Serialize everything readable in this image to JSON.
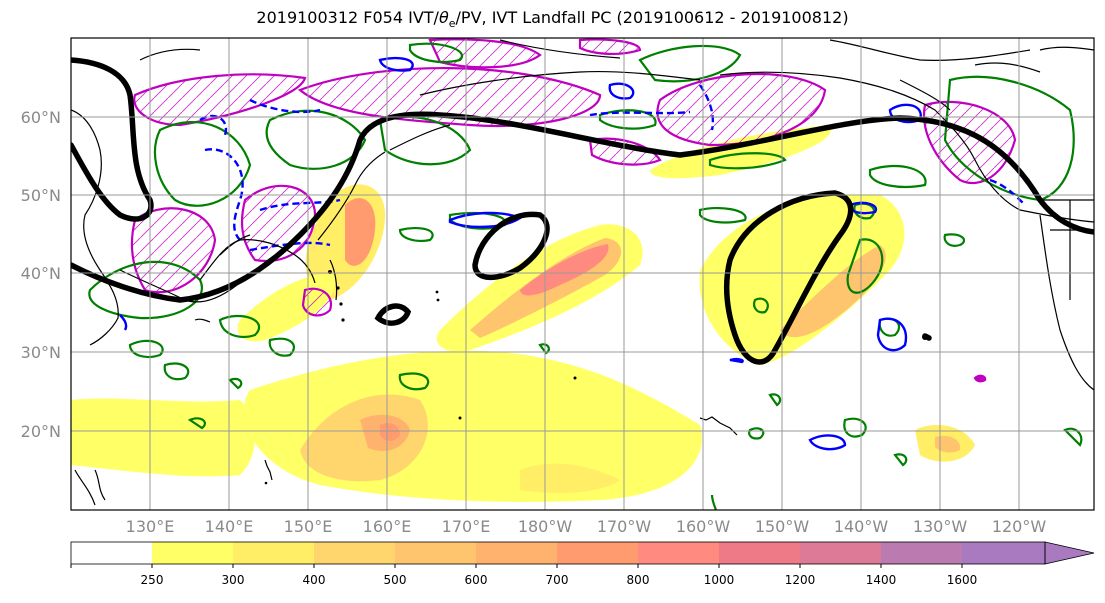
{
  "title": {
    "prefix": "2019100312 F054 IVT/",
    "theta": "θ",
    "theta_sub": "e",
    "suffix": "/PV, IVT Landfall PC (2019100612 - 2019100812)"
  },
  "map": {
    "lat_labels": [
      "60°N",
      "50°N",
      "40°N",
      "30°N",
      "20°N"
    ],
    "lon_labels": [
      "130°E",
      "140°E",
      "150°E",
      "160°E",
      "170°E",
      "180°W",
      "170°W",
      "160°W",
      "150°W",
      "140°W",
      "130°W",
      "120°W"
    ],
    "colors": {
      "land_outline": "#000000",
      "pv_contour": "#000000",
      "theta_contour": "#0000ff",
      "green_contour": "#008000",
      "hatch": "#c000c0"
    }
  },
  "colorbar": {
    "ticks": [
      "250",
      "300",
      "400",
      "500",
      "600",
      "700",
      "800",
      "1000",
      "1200",
      "1400",
      "1600"
    ],
    "colors": [
      "#ffffff",
      "#ffff66",
      "#ffee66",
      "#ffd66e",
      "#ffc46e",
      "#ffb26e",
      "#ff9b6e",
      "#ff8a80",
      "#ee7a88",
      "#dd7a98",
      "#bb7ab0",
      "#a97ac0"
    ]
  }
}
